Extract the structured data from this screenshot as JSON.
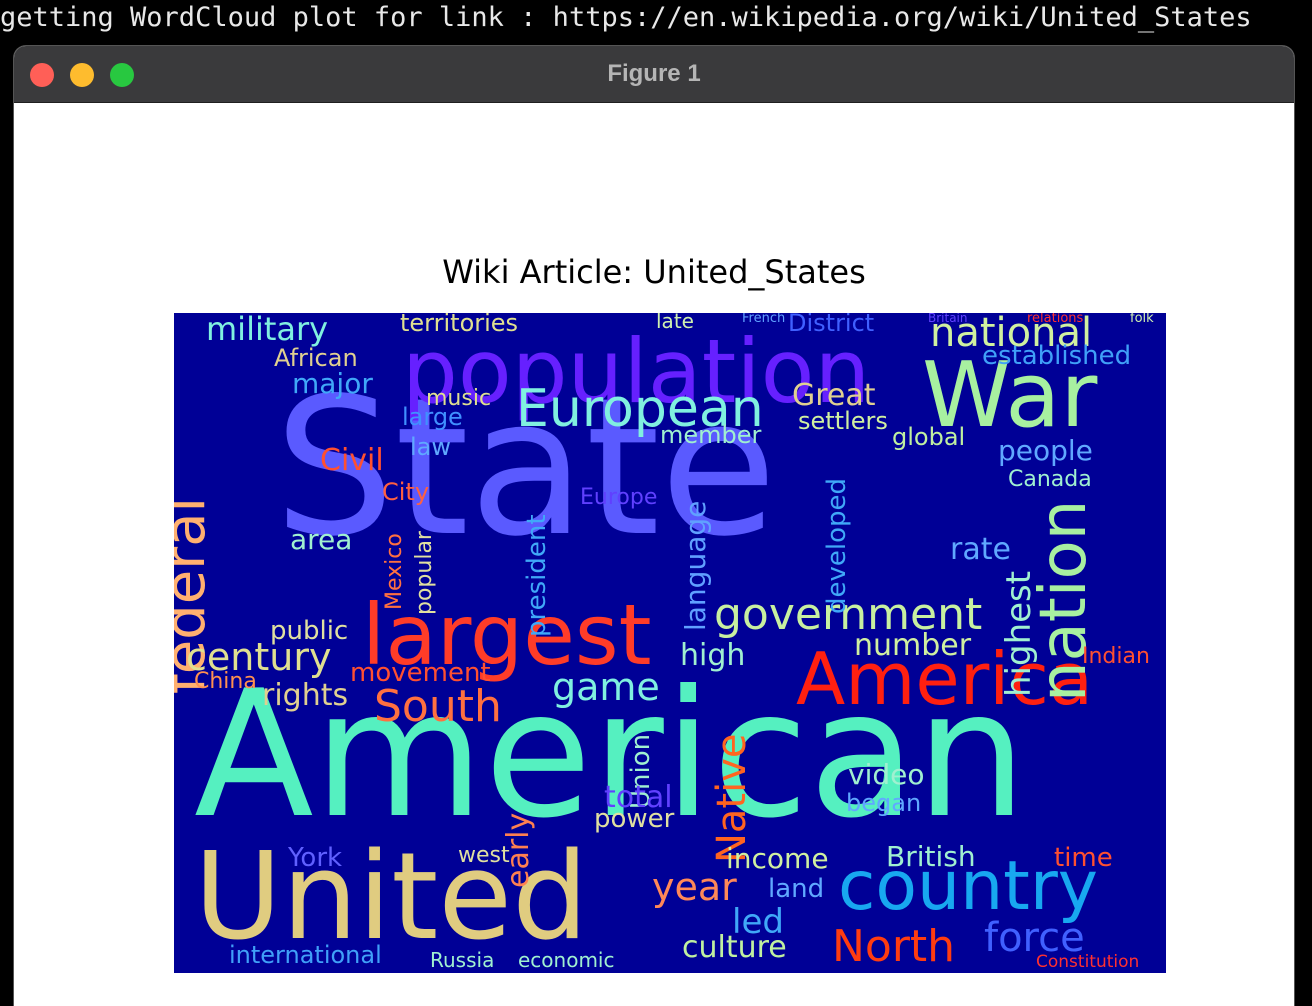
{
  "terminal": {
    "line": "getting WordCloud plot for link : https://en.wikipedia.org/wiki/United_States"
  },
  "window": {
    "title": "Figure 1",
    "buttons": [
      "close",
      "minimize",
      "zoom"
    ]
  },
  "figure": {
    "title": "Wiki Article: United_States",
    "background": "#000096"
  },
  "chart_data": {
    "type": "wordcloud",
    "title": "Wiki Article: United_States",
    "colormap": "rainbow",
    "words": [
      {
        "text": "State",
        "color": "#5a5aff"
      },
      {
        "text": "American",
        "color": "#55f0c0"
      },
      {
        "text": "United",
        "color": "#e0cc80"
      },
      {
        "text": "population",
        "color": "#6620ff"
      },
      {
        "text": "War",
        "color": "#a8f0a0"
      },
      {
        "text": "largest",
        "color": "#ff3c28"
      },
      {
        "text": "America",
        "color": "#ff2010"
      },
      {
        "text": "country",
        "color": "#18a8f0"
      },
      {
        "text": "nation",
        "color": "#a8f0a0"
      },
      {
        "text": "federal",
        "color": "#ffb070"
      },
      {
        "text": "European",
        "color": "#80f0e0"
      },
      {
        "text": "government",
        "color": "#c8f0a0"
      },
      {
        "text": "national",
        "color": "#d0f0a0"
      },
      {
        "text": "North",
        "color": "#ff3c10"
      },
      {
        "text": "South",
        "color": "#ff7040"
      },
      {
        "text": "Native",
        "color": "#ff6420"
      },
      {
        "text": "force",
        "color": "#4060ff"
      },
      {
        "text": "century",
        "color": "#e0e090"
      },
      {
        "text": "military",
        "color": "#80f0e0"
      },
      {
        "text": "year",
        "color": "#ff8858"
      },
      {
        "text": "game",
        "color": "#80f0e0"
      },
      {
        "text": "culture",
        "color": "#c0f0a0"
      },
      {
        "text": "international",
        "color": "#40a0f8"
      },
      {
        "text": "established",
        "color": "#40a0f8"
      },
      {
        "text": "territories",
        "color": "#e0e090"
      },
      {
        "text": "District",
        "color": "#4060ff"
      },
      {
        "text": "late",
        "color": "#d0f0b0"
      },
      {
        "text": "French",
        "color": "#60a0ff"
      },
      {
        "text": "Britain",
        "color": "#6040ff"
      },
      {
        "text": "relations",
        "color": "#ff3030"
      },
      {
        "text": "folk",
        "color": "#d0f0b0"
      },
      {
        "text": "African",
        "color": "#e0d090"
      },
      {
        "text": "major",
        "color": "#40a8f8"
      },
      {
        "text": "music",
        "color": "#e0e090"
      },
      {
        "text": "large",
        "color": "#4090ff"
      },
      {
        "text": "Great",
        "color": "#e0d090"
      },
      {
        "text": "settlers",
        "color": "#d0f0a0"
      },
      {
        "text": "member",
        "color": "#a0f0d0"
      },
      {
        "text": "global",
        "color": "#c0f0a0"
      },
      {
        "text": "people",
        "color": "#60a8ff"
      },
      {
        "text": "Civil",
        "color": "#ff5030"
      },
      {
        "text": "City",
        "color": "#ff6040"
      },
      {
        "text": "law",
        "color": "#60a8ff"
      },
      {
        "text": "area",
        "color": "#a0f0d0"
      },
      {
        "text": "Mexico",
        "color": "#ff7040"
      },
      {
        "text": "popular",
        "color": "#e0e0a0"
      },
      {
        "text": "president",
        "color": "#40a8f8"
      },
      {
        "text": "Europe",
        "color": "#6040ff"
      },
      {
        "text": "language",
        "color": "#60a0ff"
      },
      {
        "text": "developed",
        "color": "#40a8f8"
      },
      {
        "text": "highest",
        "color": "#a0f0d0"
      },
      {
        "text": "rate",
        "color": "#60a8ff"
      },
      {
        "text": "Canada",
        "color": "#a0f0d0"
      },
      {
        "text": "public",
        "color": "#e0e0a0"
      },
      {
        "text": "rights",
        "color": "#e0d090"
      },
      {
        "text": "movement",
        "color": "#ff5030"
      },
      {
        "text": "China",
        "color": "#ff9050"
      },
      {
        "text": "high",
        "color": "#a0f0d0"
      },
      {
        "text": "number",
        "color": "#d0f0a0"
      },
      {
        "text": "Indian",
        "color": "#ff5030"
      },
      {
        "text": "Union",
        "color": "#a0f0d0"
      },
      {
        "text": "total",
        "color": "#6040ff"
      },
      {
        "text": "power",
        "color": "#e0e0a0"
      },
      {
        "text": "early",
        "color": "#ff8050"
      },
      {
        "text": "video",
        "color": "#a0f0d0"
      },
      {
        "text": "began",
        "color": "#60a8ff"
      },
      {
        "text": "income",
        "color": "#d0f0a0"
      },
      {
        "text": "land",
        "color": "#60a8ff"
      },
      {
        "text": "led",
        "color": "#40a8f8"
      },
      {
        "text": "British",
        "color": "#a0f0d0"
      },
      {
        "text": "time",
        "color": "#ff5030"
      },
      {
        "text": "York",
        "color": "#6060ff"
      },
      {
        "text": "west",
        "color": "#e0e0a0"
      },
      {
        "text": "Russia",
        "color": "#a0f0d0"
      },
      {
        "text": "economic",
        "color": "#a0f0d0"
      },
      {
        "text": "Constitution",
        "color": "#ff3030"
      }
    ]
  }
}
